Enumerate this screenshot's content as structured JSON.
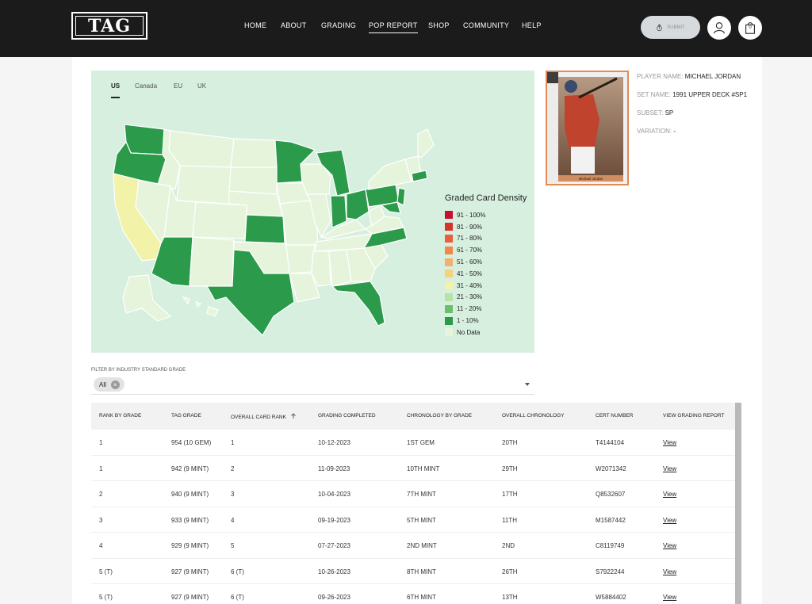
{
  "brand": {
    "logo_text": "TAG"
  },
  "nav": {
    "items": [
      {
        "label": "HOME",
        "active": false
      },
      {
        "label": "ABOUT",
        "active": false
      },
      {
        "label": "GRADING",
        "active": false
      },
      {
        "label": "POP REPORT",
        "active": true
      },
      {
        "label": "SHOP",
        "active": false
      },
      {
        "label": "COMMUNITY",
        "active": false
      },
      {
        "label": "HELP",
        "active": false
      }
    ],
    "submit_label": "SUBMIT",
    "cart_count": "0"
  },
  "map": {
    "tabs": [
      {
        "label": "US",
        "active": true
      },
      {
        "label": "Canada",
        "active": false
      },
      {
        "label": "EU",
        "active": false
      },
      {
        "label": "UK",
        "active": false
      }
    ],
    "legend_title": "Graded Card Density",
    "legend": [
      {
        "label": "91 - 100%",
        "color": "#c8102e"
      },
      {
        "label": "81 - 90%",
        "color": "#d8322a"
      },
      {
        "label": "71 - 80%",
        "color": "#ea5e3a"
      },
      {
        "label": "61 - 70%",
        "color": "#f0884e"
      },
      {
        "label": "51 - 60%",
        "color": "#f4ae6e"
      },
      {
        "label": "41 - 50%",
        "color": "#f7d27e"
      },
      {
        "label": "31 - 40%",
        "color": "#f2f2a8"
      },
      {
        "label": "21 - 30%",
        "color": "#b9e2a8"
      },
      {
        "label": "11 - 20%",
        "color": "#6cbf6a"
      },
      {
        "label": "1 - 10%",
        "color": "#2b9a4b"
      },
      {
        "label": "No Data",
        "color": "#e6f4dc"
      }
    ]
  },
  "card": {
    "player_name_label": "PLAYER NAME:",
    "player_name": "MICHAEL JORDAN",
    "set_name_label": "SET NAME:",
    "set_name": "1991 UPPER DECK #SP1",
    "subset_label": "SUBSET:",
    "subset": "SP",
    "variation_label": "VARIATION:",
    "variation": "-",
    "caption": "Michael Jordan"
  },
  "filter": {
    "label": "FILTER BY INDUSTRY STANDARD GRADE",
    "chip": "All"
  },
  "table": {
    "headers": [
      "RANK BY GRADE",
      "TAG GRADE",
      "OVERALL CARD RANK",
      "GRADING COMPLETED",
      "CHRONOLOGY BY GRADE",
      "OVERALL CHRONOLOGY",
      "CERT NUMBER",
      "VIEW GRADING REPORT"
    ],
    "rows": [
      [
        "1",
        "954 (10 GEM)",
        "1",
        "10-12-2023",
        "1ST GEM",
        "20TH",
        "T4144104",
        "View"
      ],
      [
        "1",
        "942 (9 MINT)",
        "2",
        "11-09-2023",
        "10TH MINT",
        "29TH",
        "W2071342",
        "View"
      ],
      [
        "2",
        "940 (9 MINT)",
        "3",
        "10-04-2023",
        "7TH MINT",
        "17TH",
        "Q8532607",
        "View"
      ],
      [
        "3",
        "933 (9 MINT)",
        "4",
        "09-19-2023",
        "5TH MINT",
        "11TH",
        "M1587442",
        "View"
      ],
      [
        "4",
        "929 (9 MINT)",
        "5",
        "07-27-2023",
        "2ND MINT",
        "2ND",
        "C8119749",
        "View"
      ],
      [
        "5 (T)",
        "927 (9 MINT)",
        "6 (T)",
        "10-26-2023",
        "8TH MINT",
        "26TH",
        "S7922244",
        "View"
      ],
      [
        "5 (T)",
        "927 (9 MINT)",
        "6 (T)",
        "09-26-2023",
        "6TH MINT",
        "13TH",
        "W5884402",
        "View"
      ]
    ]
  }
}
